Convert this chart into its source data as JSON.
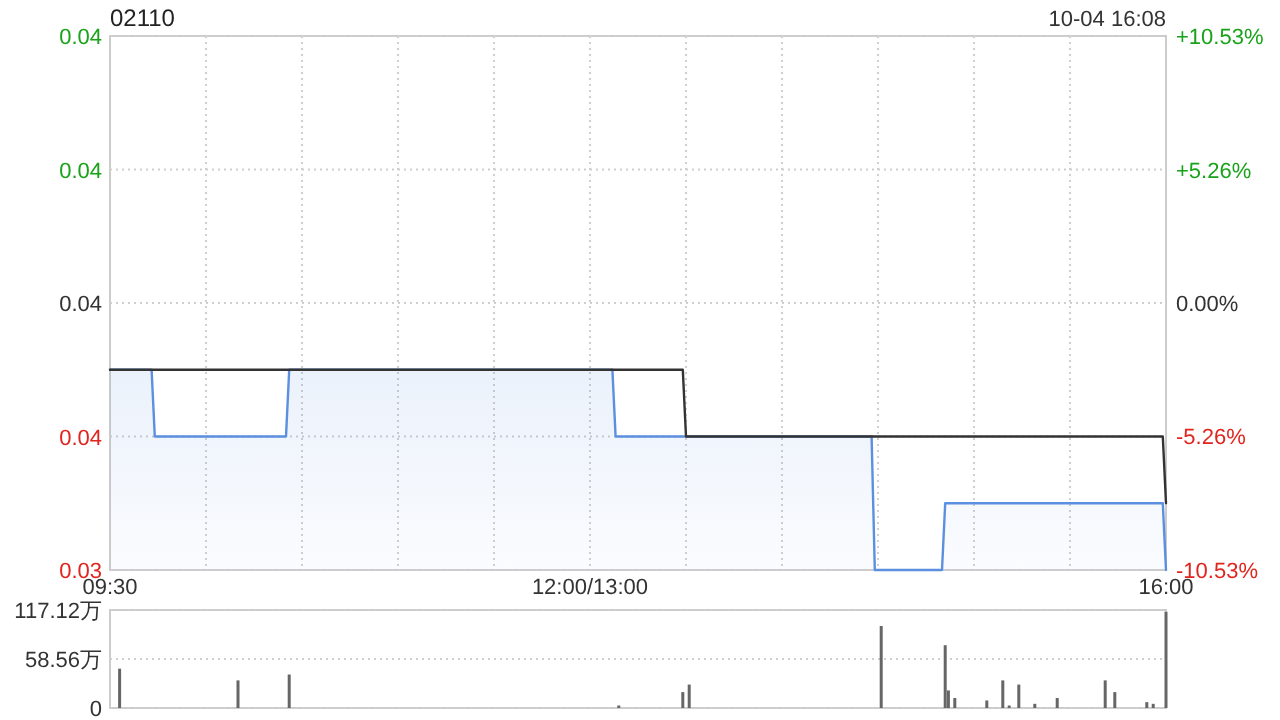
{
  "chart_data": [
    {
      "type": "line",
      "title": "02110",
      "annotations": [
        "10-04 16:08"
      ],
      "categories": [
        "09:30",
        null,
        null,
        null,
        null,
        null,
        null,
        null,
        null,
        null,
        null,
        null,
        null,
        null,
        null,
        null,
        null,
        null,
        null,
        null,
        null,
        null,
        null,
        null,
        null,
        null,
        null,
        null,
        null,
        null,
        null,
        null,
        null,
        null,
        null,
        null,
        null,
        null,
        null,
        null,
        null,
        null,
        null,
        null,
        null,
        null,
        null,
        null,
        null,
        null,
        null,
        null,
        null,
        null,
        null,
        null,
        null,
        null,
        null,
        null,
        null,
        null,
        null,
        null,
        null,
        null,
        null,
        null,
        null,
        null,
        null,
        null,
        null,
        null,
        null,
        null,
        null,
        null,
        null,
        null,
        null,
        null,
        null,
        null,
        null,
        null,
        null,
        null,
        null,
        null,
        null,
        null,
        null,
        null,
        null,
        null,
        null,
        null,
        null,
        null,
        null,
        null,
        null,
        null,
        null,
        null,
        null,
        null,
        null,
        null,
        null,
        null,
        null,
        null,
        null,
        null,
        null,
        null,
        null,
        null,
        null,
        null,
        null,
        null,
        null,
        null,
        null,
        null,
        null,
        null,
        null,
        null,
        null,
        null,
        null,
        null,
        null,
        null,
        null,
        null,
        null,
        null,
        null,
        null,
        null,
        null,
        null,
        null,
        null,
        null,
        "12:00/13:00",
        null,
        null,
        null,
        null,
        null,
        null,
        null,
        null,
        null,
        null,
        null,
        null,
        null,
        null,
        null,
        null,
        null,
        null,
        null,
        null,
        null,
        null,
        null,
        null,
        null,
        null,
        null,
        null,
        null,
        null,
        null,
        null,
        null,
        null,
        null,
        null,
        null,
        null,
        null,
        null,
        null,
        null,
        null,
        null,
        null,
        null,
        null,
        null,
        null,
        null,
        null,
        null,
        null,
        null,
        null,
        null,
        null,
        null,
        null,
        null,
        null,
        null,
        null,
        null,
        null,
        null,
        null,
        null,
        null,
        null,
        null,
        null,
        null,
        null,
        null,
        null,
        null,
        null,
        null,
        null,
        null,
        null,
        null,
        null,
        null,
        null,
        null,
        null,
        null,
        null,
        null,
        null,
        null,
        null,
        null,
        null,
        null,
        null,
        null,
        null,
        null,
        null,
        null,
        null,
        null,
        null,
        null,
        null,
        null,
        null,
        null,
        null,
        null,
        null,
        null,
        null,
        null,
        null,
        null,
        null,
        null,
        null,
        null,
        null,
        null,
        null,
        null,
        null,
        null,
        null,
        null,
        null,
        null,
        null,
        null,
        null,
        null,
        null,
        null,
        null,
        null,
        null,
        null,
        null,
        null,
        null,
        null,
        null,
        null,
        null,
        null,
        null,
        null,
        null,
        null,
        null,
        null,
        null,
        null,
        null,
        null,
        null,
        null,
        null,
        null,
        null,
        null,
        null,
        null,
        null,
        null,
        null,
        null,
        null,
        null,
        null,
        null,
        null,
        null,
        "16:00"
      ],
      "ylim": [
        0.034,
        0.042
      ],
      "yticks": [
        {
          "value": 0.034,
          "label": "0.03"
        },
        {
          "value": 0.036,
          "label": "0.04"
        },
        {
          "value": 0.038,
          "label": "0.04"
        },
        {
          "value": 0.04,
          "label": "0.04"
        },
        {
          "value": 0.042,
          "label": "0.04"
        }
      ],
      "y2lim": [
        -10.53,
        10.53
      ],
      "y2ticks": [
        {
          "value": -10.53,
          "label": "-10.53%"
        },
        {
          "value": -5.26,
          "label": "-5.26%"
        },
        {
          "value": 0,
          "label": "0.00%"
        },
        {
          "value": 5.26,
          "label": "+5.26%"
        },
        {
          "value": 10.53,
          "label": "+10.53%"
        }
      ],
      "grid": true,
      "series": [
        {
          "type": "area",
          "color": "#5b8fe0",
          "values": [
            0.037,
            0.037,
            0.037,
            0.037,
            0.037,
            0.037,
            0.037,
            0.037,
            0.037,
            0.037,
            0.037,
            0.037,
            0.037,
            0.037,
            0.036,
            0.036,
            0.036,
            0.036,
            0.036,
            0.036,
            0.036,
            0.036,
            0.036,
            0.036,
            0.036,
            0.036,
            0.036,
            0.036,
            0.036,
            0.036,
            0.036,
            0.036,
            0.036,
            0.036,
            0.036,
            0.036,
            0.036,
            0.036,
            0.036,
            0.036,
            0.036,
            0.036,
            0.036,
            0.036,
            0.036,
            0.036,
            0.036,
            0.036,
            0.036,
            0.036,
            0.036,
            0.036,
            0.036,
            0.036,
            0.036,
            0.036,
            0.037,
            0.037,
            0.037,
            0.037,
            0.037,
            0.037,
            0.037,
            0.037,
            0.037,
            0.037,
            0.037,
            0.037,
            0.037,
            0.037,
            0.037,
            0.037,
            0.037,
            0.037,
            0.037,
            0.037,
            0.037,
            0.037,
            0.037,
            0.037,
            0.037,
            0.037,
            0.037,
            0.037,
            0.037,
            0.037,
            0.037,
            0.037,
            0.037,
            0.037,
            0.037,
            0.037,
            0.037,
            0.037,
            0.037,
            0.037,
            0.037,
            0.037,
            0.037,
            0.037,
            0.037,
            0.037,
            0.037,
            0.037,
            0.037,
            0.037,
            0.037,
            0.037,
            0.037,
            0.037,
            0.037,
            0.037,
            0.037,
            0.037,
            0.037,
            0.037,
            0.037,
            0.037,
            0.037,
            0.037,
            0.037,
            0.037,
            0.037,
            0.037,
            0.037,
            0.037,
            0.037,
            0.037,
            0.037,
            0.037,
            0.037,
            0.037,
            0.037,
            0.037,
            0.037,
            0.037,
            0.037,
            0.037,
            0.037,
            0.037,
            0.037,
            0.037,
            0.037,
            0.037,
            0.037,
            0.037,
            0.037,
            0.037,
            0.037,
            0.037,
            0.037,
            0.037,
            0.037,
            0.037,
            0.037,
            0.037,
            0.037,
            0.037,
            0.036,
            0.036,
            0.036,
            0.036,
            0.036,
            0.036,
            0.036,
            0.036,
            0.036,
            0.036,
            0.036,
            0.036,
            0.036,
            0.036,
            0.036,
            0.036,
            0.036,
            0.036,
            0.036,
            0.036,
            0.036,
            0.036,
            0.036,
            0.036,
            0.036,
            0.036,
            0.036,
            0.036,
            0.036,
            0.036,
            0.036,
            0.036,
            0.036,
            0.036,
            0.036,
            0.036,
            0.036,
            0.036,
            0.036,
            0.036,
            0.036,
            0.036,
            0.036,
            0.036,
            0.036,
            0.036,
            0.036,
            0.036,
            0.036,
            0.036,
            0.036,
            0.036,
            0.036,
            0.036,
            0.036,
            0.036,
            0.036,
            0.036,
            0.036,
            0.036,
            0.036,
            0.036,
            0.036,
            0.036,
            0.036,
            0.036,
            0.036,
            0.036,
            0.036,
            0.036,
            0.036,
            0.036,
            0.036,
            0.036,
            0.036,
            0.036,
            0.036,
            0.036,
            0.036,
            0.036,
            0.036,
            0.034,
            0.034,
            0.034,
            0.034,
            0.034,
            0.034,
            0.034,
            0.034,
            0.034,
            0.034,
            0.034,
            0.034,
            0.034,
            0.034,
            0.034,
            0.034,
            0.034,
            0.034,
            0.034,
            0.034,
            0.034,
            0.034,
            0.035,
            0.035,
            0.035,
            0.035,
            0.035,
            0.035,
            0.035,
            0.035,
            0.035,
            0.035,
            0.035,
            0.035,
            0.035,
            0.035,
            0.035,
            0.035,
            0.035,
            0.035,
            0.035,
            0.035,
            0.035,
            0.035,
            0.035,
            0.035,
            0.035,
            0.035,
            0.035,
            0.035,
            0.035,
            0.035,
            0.035,
            0.035,
            0.035,
            0.035,
            0.035,
            0.035,
            0.035,
            0.035,
            0.035,
            0.035,
            0.035,
            0.035,
            0.035,
            0.035,
            0.035,
            0.035,
            0.035,
            0.035,
            0.035,
            0.035,
            0.035,
            0.035,
            0.035,
            0.035,
            0.035,
            0.035,
            0.035,
            0.035,
            0.035,
            0.035,
            0.035,
            0.035,
            0.035,
            0.035,
            0.035,
            0.035,
            0.035,
            0.035,
            0.035,
            0.034
          ]
        },
        {
          "type": "line",
          "color": "#333333",
          "values": [
            0.037,
            0.037,
            0.037,
            0.037,
            0.037,
            0.037,
            0.037,
            0.037,
            0.037,
            0.037,
            0.037,
            0.037,
            0.037,
            0.037,
            0.037,
            0.037,
            0.037,
            0.037,
            0.037,
            0.037,
            0.037,
            0.037,
            0.037,
            0.037,
            0.037,
            0.037,
            0.037,
            0.037,
            0.037,
            0.037,
            0.037,
            0.037,
            0.037,
            0.037,
            0.037,
            0.037,
            0.037,
            0.037,
            0.037,
            0.037,
            0.037,
            0.037,
            0.037,
            0.037,
            0.037,
            0.037,
            0.037,
            0.037,
            0.037,
            0.037,
            0.037,
            0.037,
            0.037,
            0.037,
            0.037,
            0.037,
            0.037,
            0.037,
            0.037,
            0.037,
            0.037,
            0.037,
            0.037,
            0.037,
            0.037,
            0.037,
            0.037,
            0.037,
            0.037,
            0.037,
            0.037,
            0.037,
            0.037,
            0.037,
            0.037,
            0.037,
            0.037,
            0.037,
            0.037,
            0.037,
            0.037,
            0.037,
            0.037,
            0.037,
            0.037,
            0.037,
            0.037,
            0.037,
            0.037,
            0.037,
            0.037,
            0.037,
            0.037,
            0.037,
            0.037,
            0.037,
            0.037,
            0.037,
            0.037,
            0.037,
            0.037,
            0.037,
            0.037,
            0.037,
            0.037,
            0.037,
            0.037,
            0.037,
            0.037,
            0.037,
            0.037,
            0.037,
            0.037,
            0.037,
            0.037,
            0.037,
            0.037,
            0.037,
            0.037,
            0.037,
            0.037,
            0.037,
            0.037,
            0.037,
            0.037,
            0.037,
            0.037,
            0.037,
            0.037,
            0.037,
            0.037,
            0.037,
            0.037,
            0.037,
            0.037,
            0.037,
            0.037,
            0.037,
            0.037,
            0.037,
            0.037,
            0.037,
            0.037,
            0.037,
            0.037,
            0.037,
            0.037,
            0.037,
            0.037,
            0.037,
            0.037,
            0.037,
            0.037,
            0.037,
            0.037,
            0.037,
            0.037,
            0.037,
            0.037,
            0.037,
            0.037,
            0.037,
            0.037,
            0.037,
            0.037,
            0.037,
            0.037,
            0.037,
            0.037,
            0.037,
            0.037,
            0.037,
            0.037,
            0.037,
            0.037,
            0.037,
            0.037,
            0.037,
            0.037,
            0.037,
            0.036,
            0.036,
            0.036,
            0.036,
            0.036,
            0.036,
            0.036,
            0.036,
            0.036,
            0.036,
            0.036,
            0.036,
            0.036,
            0.036,
            0.036,
            0.036,
            0.036,
            0.036,
            0.036,
            0.036,
            0.036,
            0.036,
            0.036,
            0.036,
            0.036,
            0.036,
            0.036,
            0.036,
            0.036,
            0.036,
            0.036,
            0.036,
            0.036,
            0.036,
            0.036,
            0.036,
            0.036,
            0.036,
            0.036,
            0.036,
            0.036,
            0.036,
            0.036,
            0.036,
            0.036,
            0.036,
            0.036,
            0.036,
            0.036,
            0.036,
            0.036,
            0.036,
            0.036,
            0.036,
            0.036,
            0.036,
            0.036,
            0.036,
            0.036,
            0.036,
            0.036,
            0.036,
            0.036,
            0.036,
            0.036,
            0.036,
            0.036,
            0.036,
            0.036,
            0.036,
            0.036,
            0.036,
            0.036,
            0.036,
            0.036,
            0.036,
            0.036,
            0.036,
            0.036,
            0.036,
            0.036,
            0.036,
            0.036,
            0.036,
            0.036,
            0.036,
            0.036,
            0.036,
            0.036,
            0.036,
            0.036,
            0.036,
            0.036,
            0.036,
            0.036,
            0.036,
            0.036,
            0.036,
            0.036,
            0.036,
            0.036,
            0.036,
            0.036,
            0.036,
            0.036,
            0.036,
            0.036,
            0.036,
            0.036,
            0.036,
            0.036,
            0.036,
            0.036,
            0.036,
            0.036,
            0.036,
            0.036,
            0.036,
            0.036,
            0.036,
            0.036,
            0.036,
            0.036,
            0.036,
            0.036,
            0.036,
            0.036,
            0.036,
            0.036,
            0.036,
            0.036,
            0.036,
            0.036,
            0.036,
            0.036,
            0.036,
            0.036,
            0.036,
            0.036,
            0.036,
            0.036,
            0.036,
            0.036,
            0.036,
            0.036,
            0.036,
            0.036,
            0.036,
            0.036,
            0.036,
            0.035
          ]
        }
      ]
    },
    {
      "type": "bar",
      "color": "#666666",
      "tick_labels": "y",
      "categories": [
        null,
        null,
        null,
        null,
        null,
        null,
        null,
        null,
        null,
        null,
        null,
        null,
        null,
        null,
        null,
        null,
        null,
        null,
        null,
        null,
        null,
        null,
        null,
        null,
        null,
        null,
        null,
        null,
        null,
        null,
        null,
        null,
        null,
        null,
        null,
        null,
        null,
        null,
        null,
        null,
        null,
        null,
        null,
        null,
        null,
        null,
        null,
        null,
        null,
        null,
        null,
        null,
        null,
        null,
        null,
        null,
        null,
        null,
        null,
        null,
        null,
        null,
        null,
        null,
        null,
        null,
        null,
        null,
        null,
        null,
        null,
        null,
        null,
        null,
        null,
        null,
        null,
        null,
        null,
        null,
        null,
        null,
        null,
        null,
        null,
        null,
        null,
        null,
        null,
        null,
        null,
        null,
        null,
        null,
        null,
        null,
        null,
        null,
        null,
        null,
        null,
        null,
        null,
        null,
        null,
        null,
        null,
        null,
        null,
        null,
        null,
        null,
        null,
        null,
        null,
        null,
        null,
        null,
        null,
        null,
        null,
        null,
        null,
        null,
        null,
        null,
        null,
        null,
        null,
        null,
        null,
        null,
        null,
        null,
        null,
        null,
        null,
        null,
        null,
        null,
        null,
        null,
        null,
        null,
        null,
        null,
        null,
        null,
        null,
        null,
        null,
        null,
        null,
        null,
        null,
        null,
        null,
        null,
        null,
        null,
        null,
        null,
        null,
        null,
        null,
        null,
        null,
        null,
        null,
        null,
        null,
        null,
        null,
        null,
        null,
        null,
        null,
        null,
        null,
        null,
        null,
        null,
        null,
        null,
        null,
        null,
        null,
        null,
        null,
        null,
        null,
        null,
        null,
        null,
        null,
        null,
        null,
        null,
        null,
        null,
        null,
        null,
        null,
        null,
        null,
        null,
        null,
        null,
        null,
        null,
        null,
        null,
        null,
        null,
        null,
        null,
        null,
        null,
        null,
        null,
        null,
        null,
        null,
        null,
        null,
        null,
        null,
        null,
        null,
        null,
        null,
        null,
        null,
        null,
        null,
        null,
        null,
        null,
        null,
        null,
        null,
        null,
        null,
        null,
        null,
        null,
        null,
        null,
        null,
        null,
        null,
        null,
        null,
        null,
        null,
        null,
        null,
        null,
        null,
        null,
        null,
        null,
        null,
        null,
        null,
        null,
        null,
        null,
        null,
        null,
        null,
        null,
        null,
        null,
        null,
        null,
        null,
        null,
        null,
        null,
        null,
        null,
        null,
        null,
        null,
        null,
        null,
        null,
        null,
        null,
        null,
        null,
        null,
        null,
        null,
        null,
        null,
        null,
        null,
        null,
        null,
        null,
        null,
        null,
        null,
        null,
        null,
        null,
        null,
        null,
        null,
        null,
        null,
        null,
        null,
        null,
        null,
        null,
        null,
        null,
        null,
        null,
        null,
        null,
        null,
        null,
        null,
        null,
        null,
        null,
        null
      ],
      "values": [
        null,
        null,
        null,
        47,
        null,
        null,
        null,
        null,
        null,
        null,
        null,
        null,
        null,
        null,
        null,
        null,
        null,
        null,
        null,
        null,
        null,
        null,
        null,
        null,
        null,
        null,
        null,
        null,
        null,
        null,
        null,
        null,
        null,
        null,
        null,
        null,
        null,
        null,
        null,
        null,
        33,
        null,
        null,
        null,
        null,
        null,
        null,
        null,
        null,
        null,
        null,
        null,
        null,
        null,
        null,
        null,
        40,
        null,
        null,
        null,
        null,
        null,
        null,
        null,
        null,
        null,
        null,
        null,
        null,
        null,
        null,
        null,
        null,
        null,
        null,
        null,
        null,
        null,
        null,
        null,
        null,
        null,
        null,
        null,
        null,
        null,
        null,
        null,
        null,
        null,
        null,
        null,
        null,
        null,
        null,
        null,
        null,
        null,
        null,
        null,
        null,
        null,
        null,
        null,
        null,
        null,
        null,
        null,
        null,
        null,
        null,
        null,
        null,
        null,
        null,
        null,
        null,
        null,
        null,
        null,
        null,
        null,
        null,
        null,
        null,
        null,
        null,
        null,
        null,
        null,
        null,
        null,
        null,
        null,
        null,
        null,
        null,
        null,
        null,
        null,
        null,
        null,
        null,
        null,
        null,
        null,
        null,
        null,
        null,
        null,
        null,
        null,
        null,
        null,
        null,
        null,
        null,
        null,
        null,
        3,
        null,
        null,
        null,
        null,
        null,
        null,
        null,
        null,
        null,
        null,
        null,
        null,
        null,
        null,
        null,
        null,
        null,
        null,
        null,
        19,
        null,
        28,
        null,
        null,
        null,
        null,
        null,
        null,
        null,
        null,
        null,
        null,
        null,
        null,
        null,
        null,
        null,
        null,
        null,
        null,
        null,
        null,
        null,
        null,
        null,
        null,
        null,
        null,
        null,
        null,
        null,
        null,
        null,
        null,
        null,
        null,
        null,
        null,
        null,
        null,
        null,
        null,
        null,
        null,
        null,
        null,
        null,
        null,
        null,
        null,
        null,
        null,
        null,
        null,
        null,
        null,
        null,
        null,
        null,
        null,
        null,
        98,
        null,
        null,
        null,
        null,
        null,
        null,
        null,
        null,
        null,
        null,
        null,
        null,
        null,
        null,
        null,
        null,
        null,
        null,
        null,
        75,
        21,
        null,
        12,
        null,
        null,
        null,
        null,
        null,
        null,
        null,
        null,
        null,
        9,
        null,
        null,
        null,
        null,
        33,
        null,
        3,
        null,
        null,
        28,
        null,
        null,
        null,
        null,
        5,
        null,
        null,
        null,
        null,
        null,
        null,
        12,
        null,
        null,
        null,
        null,
        null,
        null,
        null,
        null,
        null,
        null,
        null,
        null,
        null,
        null,
        33,
        null,
        null,
        19,
        null,
        null,
        null,
        null,
        null,
        null,
        null,
        null,
        null,
        7,
        null,
        5,
        null,
        null,
        null,
        115
      ],
      "ylim": [
        0,
        117.12
      ],
      "yticks": [
        0,
        {
          "value": 58.56,
          "label": "58.56万"
        },
        {
          "value": 117.12,
          "label": "117.12万"
        }
      ],
      "grid": "y"
    }
  ]
}
